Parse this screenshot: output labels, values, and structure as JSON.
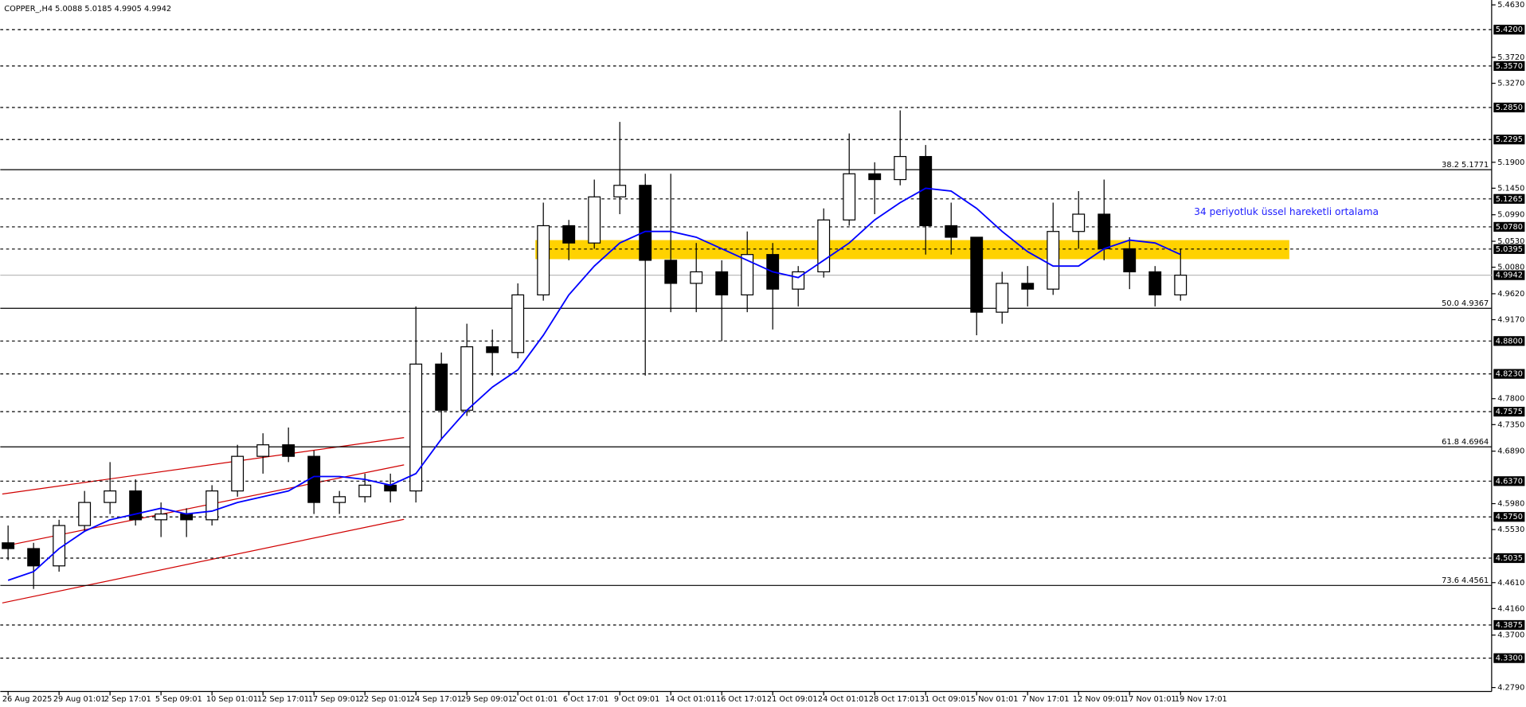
{
  "chart_data": {
    "type": "candlestick",
    "title": "COPPER_,H4  5.0088 5.0185 4.9905 4.9942",
    "annotation": "34 periyotluk üssel hareketli ortalama",
    "ylim": [
      4.279,
      5.463
    ],
    "yticks": [
      {
        "value": 5.463,
        "label": "5.4630"
      },
      {
        "value": 5.372,
        "label": "5.3720"
      },
      {
        "value": 5.327,
        "label": "5.3270"
      },
      {
        "value": 5.19,
        "label": "5.1900"
      },
      {
        "value": 5.145,
        "label": "5.1450"
      },
      {
        "value": 5.099,
        "label": "5.0990"
      },
      {
        "value": 5.053,
        "label": "5.0530"
      },
      {
        "value": 5.008,
        "label": "5.0080"
      },
      {
        "value": 4.962,
        "label": "4.9620"
      },
      {
        "value": 4.917,
        "label": "4.9170"
      },
      {
        "value": 4.78,
        "label": "4.7800"
      },
      {
        "value": 4.735,
        "label": "4.7350"
      },
      {
        "value": 4.689,
        "label": "4.6890"
      },
      {
        "value": 4.598,
        "label": "4.5980"
      },
      {
        "value": 4.553,
        "label": "4.5530"
      },
      {
        "value": 4.461,
        "label": "4.4610"
      },
      {
        "value": 4.416,
        "label": "4.4160"
      },
      {
        "value": 4.37,
        "label": "4.3700"
      },
      {
        "value": 4.279,
        "label": "4.2790"
      }
    ],
    "xticks": [
      {
        "value": 0,
        "label": "26 Aug 2025"
      },
      {
        "value": 2,
        "label": "29 Aug 01:01"
      },
      {
        "value": 4,
        "label": "2 Sep 17:01"
      },
      {
        "value": 6,
        "label": "5 Sep 09:01"
      },
      {
        "value": 8,
        "label": "10 Sep 01:01"
      },
      {
        "value": 10,
        "label": "12 Sep 17:01"
      },
      {
        "value": 12,
        "label": "17 Sep 09:01"
      },
      {
        "value": 14,
        "label": "22 Sep 01:01"
      },
      {
        "value": 16,
        "label": "24 Sep 17:01"
      },
      {
        "value": 18,
        "label": "29 Sep 09:01"
      },
      {
        "value": 20,
        "label": "2 Oct 01:01"
      },
      {
        "value": 22,
        "label": "6 Oct 17:01"
      },
      {
        "value": 24,
        "label": "9 Oct 09:01"
      },
      {
        "value": 26,
        "label": "14 Oct 01:01"
      },
      {
        "value": 28,
        "label": "16 Oct 17:01"
      },
      {
        "value": 30,
        "label": "21 Oct 09:01"
      },
      {
        "value": 32,
        "label": "24 Oct 01:01"
      },
      {
        "value": 34,
        "label": "28 Oct 17:01"
      },
      {
        "value": 36,
        "label": "31 Oct 09:01"
      },
      {
        "value": 38,
        "label": "5 Nov 01:01"
      },
      {
        "value": 40,
        "label": "7 Nov 17:01"
      },
      {
        "value": 42,
        "label": "12 Nov 09:01"
      },
      {
        "value": 44,
        "label": "17 Nov 01:01"
      },
      {
        "value": 46,
        "label": "19 Nov 17:01"
      }
    ],
    "open": [
      4.53,
      4.52,
      4.49,
      4.56,
      4.6,
      4.62,
      4.57,
      4.58,
      4.57,
      4.62,
      4.68,
      4.7,
      4.68,
      4.6,
      4.61,
      4.63,
      4.62,
      4.84,
      4.76,
      4.87,
      4.86,
      4.96,
      5.08,
      5.05,
      5.13,
      5.15,
      5.02,
      4.98,
      5.0,
      4.96,
      5.03,
      4.97,
      5.0,
      5.09,
      5.17,
      5.16,
      5.2,
      5.08,
      5.06,
      4.93,
      4.98,
      4.97,
      5.07,
      5.1,
      5.04,
      5.0,
      4.96
    ],
    "high": [
      4.56,
      4.53,
      4.57,
      4.62,
      4.67,
      4.64,
      4.6,
      4.59,
      4.63,
      4.7,
      4.72,
      4.73,
      4.69,
      4.62,
      4.65,
      4.65,
      4.94,
      4.86,
      4.91,
      4.9,
      4.98,
      5.12,
      5.09,
      5.16,
      5.26,
      5.17,
      5.17,
      5.05,
      5.02,
      5.07,
      5.05,
      5.01,
      5.11,
      5.24,
      5.19,
      5.28,
      5.22,
      5.12,
      5.06,
      5.0,
      5.01,
      5.12,
      5.14,
      5.16,
      5.06,
      5.01,
      5.04
    ],
    "low": [
      4.5,
      4.45,
      4.48,
      4.55,
      4.58,
      4.56,
      4.54,
      4.54,
      4.56,
      4.61,
      4.65,
      4.67,
      4.58,
      4.58,
      4.6,
      4.6,
      4.6,
      4.71,
      4.75,
      4.82,
      4.85,
      4.95,
      5.02,
      5.04,
      5.1,
      4.82,
      4.93,
      4.93,
      4.88,
      4.93,
      4.9,
      4.94,
      4.99,
      5.08,
      5.1,
      5.15,
      5.03,
      5.03,
      4.89,
      4.91,
      4.94,
      4.96,
      5.04,
      5.02,
      4.97,
      4.94,
      4.95
    ],
    "close": [
      4.52,
      4.49,
      4.56,
      4.6,
      4.62,
      4.57,
      4.58,
      4.57,
      4.62,
      4.68,
      4.7,
      4.68,
      4.6,
      4.61,
      4.63,
      4.62,
      4.84,
      4.76,
      4.87,
      4.86,
      4.96,
      5.08,
      5.05,
      5.13,
      5.15,
      5.02,
      4.98,
      5.0,
      4.96,
      5.03,
      4.97,
      5.0,
      5.09,
      5.17,
      5.16,
      5.2,
      5.08,
      5.06,
      4.93,
      4.98,
      4.97,
      5.07,
      5.1,
      5.04,
      5.0,
      4.96,
      4.9942
    ],
    "ema": [
      4.465,
      4.48,
      4.52,
      4.55,
      4.57,
      4.58,
      4.59,
      4.58,
      4.585,
      4.6,
      4.61,
      4.62,
      4.645,
      4.645,
      4.64,
      4.63,
      4.65,
      4.71,
      4.76,
      4.8,
      4.83,
      4.89,
      4.96,
      5.01,
      5.05,
      5.07,
      5.07,
      5.06,
      5.04,
      5.02,
      5.0,
      4.99,
      5.02,
      5.05,
      5.09,
      5.12,
      5.145,
      5.14,
      5.11,
      5.07,
      5.035,
      5.01,
      5.01,
      5.04,
      5.055,
      5.05,
      5.03
    ],
    "ema_color": "#0000ff",
    "levels": [
      {
        "value": 5.42,
        "label": "5.4200"
      },
      {
        "value": 5.357,
        "label": "5.3570"
      },
      {
        "value": 5.285,
        "label": "5.2850"
      },
      {
        "value": 5.2295,
        "label": "5.2295"
      },
      {
        "value": 5.1265,
        "label": "5.1265"
      },
      {
        "value": 5.078,
        "label": "5.0780"
      },
      {
        "value": 5.0395,
        "label": "5.0395"
      },
      {
        "value": 4.88,
        "label": "4.8800"
      },
      {
        "value": 4.823,
        "label": "4.8230"
      },
      {
        "value": 4.7575,
        "label": "4.7575"
      },
      {
        "value": 4.637,
        "label": "4.6370"
      },
      {
        "value": 4.575,
        "label": "4.5750"
      },
      {
        "value": 4.5035,
        "label": "4.5035"
      },
      {
        "value": 4.3875,
        "label": "4.3875"
      },
      {
        "value": 4.33,
        "label": "4.3300"
      }
    ],
    "fib": [
      {
        "value": 5.1771,
        "label": "38.2 5.1771"
      },
      {
        "value": 4.9367,
        "label": "50.0 4.9367"
      },
      {
        "value": 4.6964,
        "label": "61.8 4.6964"
      },
      {
        "value": 4.4561,
        "label": "73.6 4.4561"
      }
    ],
    "last": 4.9942,
    "zone": [
      5.022,
      5.055
    ],
    "zone_color": "#ffd200"
  }
}
